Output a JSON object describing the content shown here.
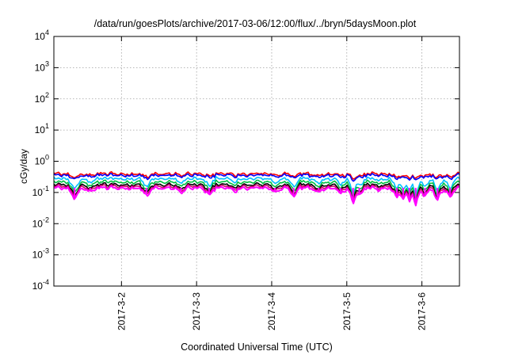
{
  "chart_data": {
    "type": "line",
    "title": "/data/run/goesPlots/archive/2017-03-06/12:00/flux/../bryn/5daysMoon.plot",
    "xlabel": "Coordinated Universal Time (UTC)",
    "ylabel": "cGy/day",
    "yscale": "log",
    "ylim": [
      0.0001,
      10000
    ],
    "xlim": [
      "2017-03-01 02:24",
      "2017-03-06 12:00"
    ],
    "grid": true,
    "legend": "none",
    "x_ticks": [
      {
        "label": "2017-3-2",
        "value": "2017-03-02 00:00"
      },
      {
        "label": "2017-3-3",
        "value": "2017-03-03 00:00"
      },
      {
        "label": "2017-3-4",
        "value": "2017-03-04 00:00"
      },
      {
        "label": "2017-3-5",
        "value": "2017-03-05 00:00"
      },
      {
        "label": "2017-3-6",
        "value": "2017-03-06 00:00"
      }
    ],
    "y_ticks": [
      {
        "base": "10",
        "exp": "-4",
        "value": 0.0001
      },
      {
        "base": "10",
        "exp": "-3",
        "value": 0.001
      },
      {
        "base": "10",
        "exp": "-2",
        "value": 0.01
      },
      {
        "base": "10",
        "exp": "-1",
        "value": 0.1
      },
      {
        "base": "10",
        "exp": "0",
        "value": 1
      },
      {
        "base": "10",
        "exp": "1",
        "value": 10
      },
      {
        "base": "10",
        "exp": "2",
        "value": 100
      },
      {
        "base": "10",
        "exp": "3",
        "value": 1000
      },
      {
        "base": "10",
        "exp": "4",
        "value": 10000
      }
    ],
    "series": [
      {
        "color": "#ff0000",
        "level": 0.4
      },
      {
        "color": "#0000ff",
        "level": 0.36
      },
      {
        "color": "#00bfff",
        "level": 0.28
      },
      {
        "color": "#00c040",
        "level": 0.22
      },
      {
        "color": "#000000",
        "level": 0.18
      },
      {
        "color": "#d0006a",
        "level": 0.16
      },
      {
        "color": "#ff00ff",
        "level": 0.14
      }
    ],
    "dips": [
      {
        "x": "2017-03-01 09:00",
        "y": 0.07
      },
      {
        "x": "2017-03-01 14:00",
        "y": 0.12
      },
      {
        "x": "2017-03-02 08:00",
        "y": 0.09
      },
      {
        "x": "2017-03-02 19:00",
        "y": 0.11
      },
      {
        "x": "2017-03-03 04:00",
        "y": 0.09
      },
      {
        "x": "2017-03-03 12:00",
        "y": 0.12
      },
      {
        "x": "2017-03-04 01:00",
        "y": 0.11
      },
      {
        "x": "2017-03-04 07:00",
        "y": 0.08
      },
      {
        "x": "2017-03-04 15:00",
        "y": 0.12
      },
      {
        "x": "2017-03-04 22:00",
        "y": 0.1
      },
      {
        "x": "2017-03-05 02:00",
        "y": 0.05
      },
      {
        "x": "2017-03-05 04:00",
        "y": 0.09
      },
      {
        "x": "2017-03-05 10:00",
        "y": 0.13
      },
      {
        "x": "2017-03-05 16:00",
        "y": 0.08
      },
      {
        "x": "2017-03-05 18:00",
        "y": 0.06
      },
      {
        "x": "2017-03-05 20:00",
        "y": 0.06
      },
      {
        "x": "2017-03-05 22:00",
        "y": 0.04
      },
      {
        "x": "2017-03-06 01:00",
        "y": 0.08
      },
      {
        "x": "2017-03-06 05:00",
        "y": 0.06
      },
      {
        "x": "2017-03-06 09:00",
        "y": 0.08
      }
    ]
  }
}
